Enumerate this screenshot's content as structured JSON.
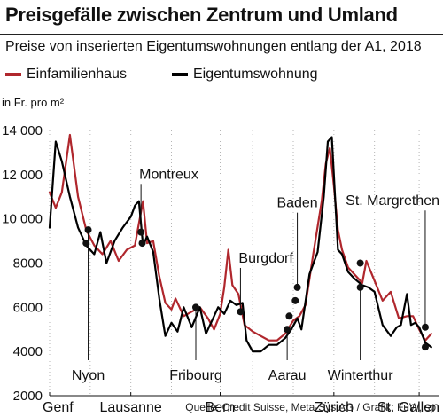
{
  "header": {
    "title": "Preisgefälle zwischen Zentrum und Umland",
    "subtitle": "Preise von inserierten Eigentumswohnungen entlang der A1, 2018"
  },
  "footer": {
    "source": "Quelle: Credit Suisse, Meta-Sys AG / Grafik: FuW, sp"
  },
  "colors": {
    "einfamilienhaus": "#b0272d",
    "eigentumswohnung": "#000000",
    "grid": "#b5b5b5"
  },
  "chart_data": {
    "type": "line",
    "title": "Preisgefälle zwischen Zentrum und Umland",
    "subtitle": "Preise von inserierten Eigentumswohnungen entlang der A1, 2018",
    "ylabel": "in Fr. pro m²",
    "ylim": [
      2000,
      14000
    ],
    "yticks": [
      2000,
      4000,
      6000,
      8000,
      10000,
      12000,
      14000
    ],
    "ytick_labels": [
      "2000",
      "4000",
      "6000",
      "8000",
      "10 000",
      "12 000",
      "14 000"
    ],
    "grid": "vertical dotted",
    "legend": "top",
    "x_ticks": [
      {
        "x": 0,
        "label": "Genf"
      },
      {
        "x": 20,
        "label": "Lausanne"
      },
      {
        "x": 42,
        "label": "Bern"
      },
      {
        "x": 70,
        "label": "Zürich"
      },
      {
        "x": 91,
        "label": "St. Gallen"
      }
    ],
    "xlim": [
      0,
      96
    ],
    "series": [
      {
        "name": "Einfamilienhaus",
        "color": "#b0272d",
        "points": [
          [
            0,
            11200
          ],
          [
            1.5,
            10500
          ],
          [
            3,
            11200
          ],
          [
            5,
            13800
          ],
          [
            7,
            11000
          ],
          [
            9,
            9500
          ],
          [
            11,
            8800
          ],
          [
            13,
            8400
          ],
          [
            15,
            9000
          ],
          [
            17,
            8100
          ],
          [
            19,
            8600
          ],
          [
            21,
            8800
          ],
          [
            22,
            9800
          ],
          [
            23,
            10800
          ],
          [
            24,
            8900
          ],
          [
            25.5,
            9000
          ],
          [
            27,
            7400
          ],
          [
            28.5,
            6200
          ],
          [
            30,
            5900
          ],
          [
            31,
            6400
          ],
          [
            33,
            5600
          ],
          [
            35,
            5800
          ],
          [
            37,
            6000
          ],
          [
            39,
            5500
          ],
          [
            40.5,
            5000
          ],
          [
            42,
            5700
          ],
          [
            43,
            6900
          ],
          [
            44,
            8600
          ],
          [
            45,
            7000
          ],
          [
            46.5,
            6600
          ],
          [
            48,
            5200
          ],
          [
            50,
            4900
          ],
          [
            52,
            4700
          ],
          [
            54,
            4500
          ],
          [
            56,
            4500
          ],
          [
            58,
            4800
          ],
          [
            60,
            5400
          ],
          [
            61.5,
            5600
          ],
          [
            63,
            6100
          ],
          [
            65,
            8500
          ],
          [
            67,
            10800
          ],
          [
            68,
            12500
          ],
          [
            69,
            13200
          ],
          [
            70,
            11500
          ],
          [
            71,
            9500
          ],
          [
            72,
            8600
          ],
          [
            73.5,
            7800
          ],
          [
            75,
            7500
          ],
          [
            77,
            7100
          ],
          [
            78,
            8100
          ],
          [
            80,
            7200
          ],
          [
            82,
            6300
          ],
          [
            84,
            6700
          ],
          [
            86,
            5500
          ],
          [
            88,
            5600
          ],
          [
            89.5,
            5600
          ],
          [
            91,
            5000
          ],
          [
            92.5,
            4500
          ],
          [
            94,
            4800
          ]
        ]
      },
      {
        "name": "Eigentumswohnung",
        "color": "#000000",
        "points": [
          [
            0,
            9600
          ],
          [
            1.5,
            13500
          ],
          [
            3,
            12600
          ],
          [
            5,
            11000
          ],
          [
            7,
            9600
          ],
          [
            9,
            8800
          ],
          [
            11,
            8400
          ],
          [
            12.5,
            9400
          ],
          [
            14,
            8000
          ],
          [
            16,
            9000
          ],
          [
            18,
            9600
          ],
          [
            20,
            10100
          ],
          [
            21,
            10600
          ],
          [
            22,
            10800
          ],
          [
            23,
            8800
          ],
          [
            24,
            9200
          ],
          [
            25.5,
            8500
          ],
          [
            27,
            6400
          ],
          [
            28.5,
            4700
          ],
          [
            30,
            5300
          ],
          [
            31.5,
            4900
          ],
          [
            33,
            6000
          ],
          [
            35,
            5100
          ],
          [
            37,
            6000
          ],
          [
            38.5,
            4800
          ],
          [
            40,
            5400
          ],
          [
            41.5,
            6000
          ],
          [
            43,
            5700
          ],
          [
            44.5,
            6300
          ],
          [
            46,
            6100
          ],
          [
            47.5,
            6200
          ],
          [
            48.5,
            4500
          ],
          [
            50,
            4000
          ],
          [
            52,
            4000
          ],
          [
            54,
            4300
          ],
          [
            56,
            4300
          ],
          [
            58,
            4600
          ],
          [
            59.5,
            5000
          ],
          [
            61,
            5500
          ],
          [
            62,
            5000
          ],
          [
            64,
            7500
          ],
          [
            66,
            8500
          ],
          [
            67.5,
            11000
          ],
          [
            68.5,
            13500
          ],
          [
            69.5,
            13700
          ],
          [
            71,
            8600
          ],
          [
            72,
            8400
          ],
          [
            73.5,
            7600
          ],
          [
            75,
            7300
          ],
          [
            77,
            7000
          ],
          [
            78.5,
            6900
          ],
          [
            80,
            6700
          ],
          [
            82,
            5200
          ],
          [
            84,
            4700
          ],
          [
            85.5,
            5100
          ],
          [
            86.5,
            5200
          ],
          [
            88,
            6600
          ],
          [
            89,
            5200
          ],
          [
            90,
            5300
          ],
          [
            91,
            5100
          ],
          [
            92.5,
            4400
          ],
          [
            94,
            4200
          ]
        ]
      }
    ],
    "markers": [
      {
        "x": 9.5,
        "y": 9500,
        "label": "Nyon",
        "label_pos": "below"
      },
      {
        "x": 9,
        "y": 8900,
        "label": "",
        "label_pos": "none"
      },
      {
        "x": 22.5,
        "y": 9400,
        "label": "Montreux",
        "label_pos": "above"
      },
      {
        "x": 22.8,
        "y": 8900,
        "label": "",
        "label_pos": "none"
      },
      {
        "x": 36,
        "y": 6000,
        "label": "Fribourg",
        "label_pos": "below"
      },
      {
        "x": 47,
        "y": 5800,
        "label": "Burgdorf",
        "label_pos": "above"
      },
      {
        "x": 58.5,
        "y": 5000,
        "label": "Aarau",
        "label_pos": "below"
      },
      {
        "x": 59,
        "y": 5600,
        "label": "",
        "label_pos": "none"
      },
      {
        "x": 60.5,
        "y": 6300,
        "label": "",
        "label_pos": "none"
      },
      {
        "x": 61,
        "y": 6900,
        "label": "Baden",
        "label_pos": "above"
      },
      {
        "x": 76.5,
        "y": 8000,
        "label": "",
        "label_pos": "none"
      },
      {
        "x": 76.5,
        "y": 6900,
        "label": "Winterthur",
        "label_pos": "below"
      },
      {
        "x": 92.5,
        "y": 5100,
        "label": "St. Margrethen",
        "label_pos": "above"
      },
      {
        "x": 92.5,
        "y": 4200,
        "label": "",
        "label_pos": "none"
      }
    ]
  }
}
